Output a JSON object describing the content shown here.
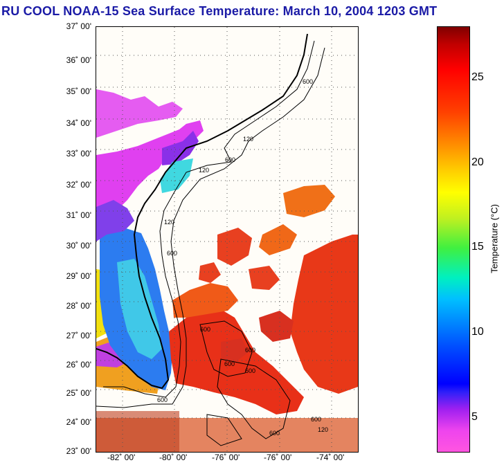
{
  "title": "RU COOL  NOAA-15  Sea Surface Temperature:  March 10, 2004 1203 GMT",
  "lat_labels": [
    "37˚ 00'",
    "36˚ 00'",
    "35˚ 00'",
    "34˚ 00'",
    "33˚ 00'",
    "32˚ 00'",
    "31˚ 00'",
    "30˚ 00'",
    "29˚ 00'",
    "28˚ 00'",
    "27˚ 00'",
    "26˚ 00'",
    "25˚ 00'",
    "24˚ 00'",
    "23˚ 00'"
  ],
  "lon_labels": [
    "-82˚ 00'",
    "-80˚ 00'",
    "-76˚ 00'",
    "-76˚ 00'",
    "-74˚ 00'"
  ],
  "colorbar": {
    "label": "Temperature (°C)",
    "ticks": [
      "25",
      "20",
      "15",
      "10",
      "5"
    ]
  },
  "isobath_labels": [
    "600",
    "600",
    "120",
    "120",
    "600",
    "120",
    "600",
    "600",
    "600",
    "600",
    "600",
    "600",
    "600",
    "120"
  ]
}
